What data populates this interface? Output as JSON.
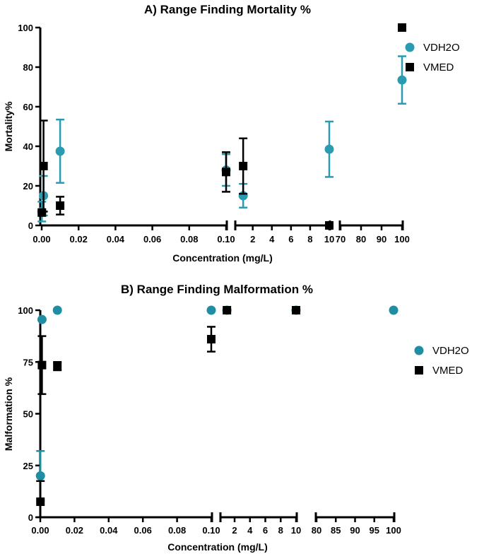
{
  "colors": {
    "teal": "#2a9bb0",
    "teal_b": "#1f8ea3",
    "black": "#000000"
  },
  "chart_data": [
    {
      "type": "scatter",
      "title": "A) Range Finding  Mortality %",
      "xlabel": "Concentration (mg/L)",
      "ylabel": "Mortality%",
      "ylim": [
        0,
        100
      ],
      "yticks": [
        "0",
        "20",
        "40",
        "60",
        "80",
        "100"
      ],
      "x_axis_scale": "segmented (broken) axis",
      "x_segments": [
        {
          "range": [
            0,
            0.1
          ],
          "ticks": [
            "0.00",
            "0.02",
            "0.04",
            "0.06",
            "0.08",
            "0.10"
          ]
        },
        {
          "range": [
            1,
            10
          ],
          "ticks": [
            "2",
            "4",
            "6",
            "8",
            "10"
          ]
        },
        {
          "range": [
            70,
            100
          ],
          "ticks": [
            "70",
            "80",
            "90",
            "100"
          ]
        }
      ],
      "legend_position": "right",
      "series": [
        {
          "name": "VDH2O",
          "marker": "circle",
          "color": "#2a9bb0",
          "points": [
            {
              "x": 0.0001,
              "y": 7,
              "err": 5
            },
            {
              "x": 0.001,
              "y": 15,
              "err": 10
            },
            {
              "x": 0.01,
              "y": 37.5,
              "err": 16
            },
            {
              "x": 0.1,
              "y": 28,
              "err": 8
            },
            {
              "x": 1,
              "y": 15,
              "err": 6
            },
            {
              "x": 10,
              "y": 38.5,
              "err": 14
            },
            {
              "x": 100,
              "y": 73.5,
              "err": 12
            }
          ]
        },
        {
          "name": "VMED",
          "marker": "square",
          "color": "#000000",
          "points": [
            {
              "x": 0.0001,
              "y": 6.5,
              "err": 0
            },
            {
              "x": 0.001,
              "y": 30,
              "err": 23
            },
            {
              "x": 0.01,
              "y": 10,
              "err": 4.5
            },
            {
              "x": 0.1,
              "y": 27,
              "err": 10
            },
            {
              "x": 1,
              "y": 30,
              "err": 14
            },
            {
              "x": 10,
              "y": 0,
              "err": 0
            },
            {
              "x": 100,
              "y": 100,
              "err": 0
            }
          ]
        }
      ]
    },
    {
      "type": "scatter",
      "title": "B) Range Finding Malformation %",
      "xlabel": "Concentration (mg/L)",
      "ylabel": "Malformation %",
      "ylim": [
        0,
        100
      ],
      "yticks": [
        "0",
        "25",
        "50",
        "75",
        "100"
      ],
      "x_axis_scale": "segmented (broken) axis",
      "x_segments": [
        {
          "range": [
            0,
            0.1
          ],
          "ticks": [
            "0.00",
            "0.02",
            "0.04",
            "0.06",
            "0.08",
            "0.10"
          ]
        },
        {
          "range": [
            1,
            10
          ],
          "ticks": [
            "2",
            "4",
            "6",
            "8",
            "10"
          ]
        },
        {
          "range": [
            80,
            100
          ],
          "ticks": [
            "80",
            "85",
            "90",
            "95",
            "100"
          ]
        }
      ],
      "legend_position": "right",
      "series": [
        {
          "name": "VDH2O",
          "marker": "circle",
          "color": "#1f8ea3",
          "points": [
            {
              "x": 0.0001,
              "y": 20,
              "err": 12
            },
            {
              "x": 0.001,
              "y": 95.5,
              "err": 0
            },
            {
              "x": 0.01,
              "y": 100,
              "err": 0
            },
            {
              "x": 0.1,
              "y": 100,
              "err": 0
            },
            {
              "x": 1,
              "y": 100,
              "err": 0
            },
            {
              "x": 10,
              "y": 100,
              "err": 0
            },
            {
              "x": 100,
              "y": 100,
              "err": 0
            }
          ]
        },
        {
          "name": "VMED",
          "marker": "square",
          "color": "#000000",
          "points": [
            {
              "x": 0.0001,
              "y": 7.5,
              "err": 10
            },
            {
              "x": 0.001,
              "y": 73.5,
              "err": 14
            },
            {
              "x": 0.01,
              "y": 73,
              "err": 2
            },
            {
              "x": 0.1,
              "y": 86,
              "err": 6
            },
            {
              "x": 1,
              "y": 100,
              "err": 0
            },
            {
              "x": 10,
              "y": 100,
              "err": 0
            }
          ]
        }
      ]
    }
  ]
}
